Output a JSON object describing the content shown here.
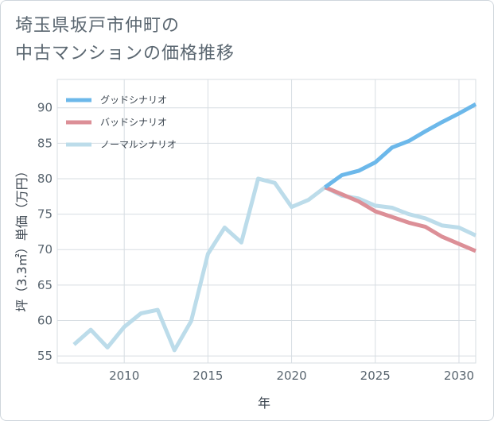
{
  "title_lines": [
    "埼玉県坂戸市仲町の",
    "中古マンションの価格推移"
  ],
  "chart_data": {
    "type": "line",
    "xlabel": "年",
    "ylabel": "坪（3.3㎡）単価（万円）",
    "xlim": [
      2006,
      2031
    ],
    "ylim": [
      54,
      94
    ],
    "xticks": [
      2010,
      2015,
      2020,
      2025,
      2030
    ],
    "yticks": [
      55,
      60,
      65,
      70,
      75,
      80,
      85,
      90
    ],
    "grid": true,
    "legend_position": "top-left",
    "series": [
      {
        "name": "グッドシナリオ",
        "color": "#6cb8ea",
        "x": [
          2022,
          2023,
          2024,
          2025,
          2026,
          2027,
          2028,
          2029,
          2030,
          2031
        ],
        "y": [
          78.8,
          80.5,
          81.1,
          82.3,
          84.4,
          85.3,
          86.7,
          88.0,
          89.2,
          90.5
        ]
      },
      {
        "name": "バッドシナリオ",
        "color": "#dc8f97",
        "x": [
          2022,
          2023,
          2024,
          2025,
          2026,
          2027,
          2028,
          2029,
          2030,
          2031
        ],
        "y": [
          78.8,
          77.8,
          76.8,
          75.4,
          74.6,
          73.8,
          73.2,
          71.8,
          70.8,
          69.8
        ]
      },
      {
        "name": "ノーマルシナリオ",
        "color": "#bcdcea",
        "x": [
          2007,
          2008,
          2009,
          2010,
          2011,
          2012,
          2013,
          2014,
          2015,
          2016,
          2017,
          2018,
          2019,
          2020,
          2021,
          2022,
          2023,
          2024,
          2025,
          2026,
          2027,
          2028,
          2029,
          2030,
          2031
        ],
        "y": [
          56.6,
          58.7,
          56.2,
          59.1,
          61.0,
          61.5,
          55.8,
          59.9,
          69.4,
          73.1,
          71.0,
          80.0,
          79.4,
          76.0,
          77.0,
          78.8,
          77.6,
          77.2,
          76.2,
          75.9,
          75.0,
          74.4,
          73.4,
          73.1,
          72.0
        ]
      }
    ]
  }
}
